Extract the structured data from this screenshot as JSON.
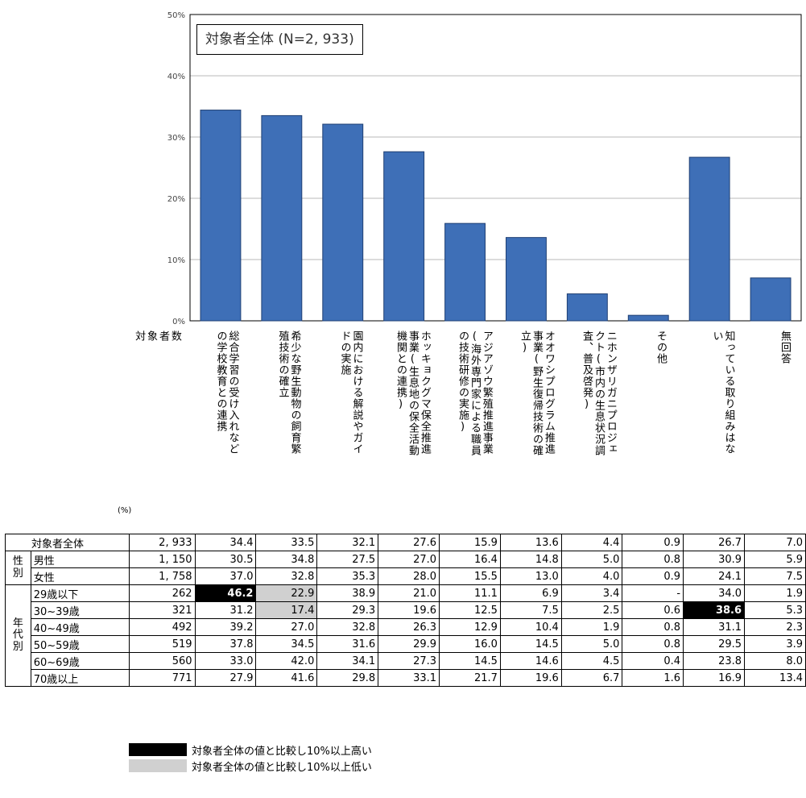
{
  "chart_data": {
    "type": "bar",
    "title": "対象者全体 (N=2, 933)",
    "ylim": [
      0,
      50
    ],
    "yticks": [
      "0%",
      "10%",
      "20%",
      "30%",
      "40%",
      "50%"
    ],
    "grid": true,
    "bar_color": "#3e6fb7",
    "categories": [
      "総合学習の学校教育との連携の受け入れなど",
      "希少な野生動物の飼育繁殖技術の確立",
      "園内における解説やガイドの実施",
      "ホッキョクグマ保全推進事業(生息地の保全活動機関との連携)",
      "アジアゾウ繁殖推進事業(海外専門家による職員の技術研修の実施)",
      "オオワシプログラム推進事業(野生復帰技術の確立)",
      "ニホンザリガニプロジェクト(市内の生息状況調査、普及啓発)",
      "その他",
      "知っている取り組みはない",
      "無回答"
    ],
    "values": [
      34.4,
      33.5,
      32.1,
      27.6,
      15.9,
      13.6,
      4.4,
      0.9,
      26.7,
      7.0
    ]
  },
  "table": {
    "pct_unit": "(%)",
    "headers": [
      "対象者数",
      "総合学習の学校教育との連携の受け入れなど",
      "希少な野生動物の飼育繁殖技術の確立",
      "園内における解説やガイドの実施",
      "ホッキョクグマ保全推進事業(生息地の保全活動機関との連携)",
      "アジアゾウ繁殖推進事業(海外専門家による職員の技術研修の実施)",
      "オオワシプログラム推進事業(野生復帰技術の確立)",
      "ニホンザリガニプロジェクト(市内の生息状況調査、普及啓発)",
      "その他",
      "知っている取り組みはない",
      "無回答"
    ],
    "header_columns": [
      [
        "対",
        "象",
        "者",
        "数"
      ],
      [
        "の学校教育との連携",
        "総合学習の受け入れなど"
      ],
      [
        "殖技術の確立",
        "希少な野生動物の飼育繁"
      ],
      [
        "ドの実施",
        "園内における解説やガイ"
      ],
      [
        "機関との連携)",
        "事業(生息地の保全活動",
        "ホッキョクグマ保全推進"
      ],
      [
        "の技術研修の実施)",
        "(海外専門家による職員",
        "アジアゾウ繁殖推進事業"
      ],
      [
        "立)",
        "事業(野生復帰技術の確",
        "オオワシプログラム推進"
      ],
      [
        "査、普及啓発)",
        "クト(市内の生息状況調",
        "ニホンザリガニプロジェ"
      ],
      [
        "その他"
      ],
      [
        "い",
        "知っている取り組みはな"
      ],
      [
        "無回答"
      ]
    ],
    "total": {
      "label": "対象者全体",
      "n": "2, 933",
      "values": [
        "34.4",
        "33.5",
        "32.1",
        "27.6",
        "15.9",
        "13.6",
        "4.4",
        "0.9",
        "26.7",
        "7.0"
      ],
      "marks": [
        "",
        "",
        "",
        "",
        "",
        "",
        "",
        "",
        "",
        ""
      ]
    },
    "groups": [
      {
        "label": "性別",
        "rows": [
          {
            "label": "男性",
            "n": "1, 150",
            "values": [
              "30.5",
              "34.8",
              "27.5",
              "27.0",
              "16.4",
              "14.8",
              "5.0",
              "0.8",
              "30.9",
              "5.9"
            ],
            "marks": [
              "",
              "",
              "",
              "",
              "",
              "",
              "",
              "",
              "",
              ""
            ]
          },
          {
            "label": "女性",
            "n": "1, 758",
            "values": [
              "37.0",
              "32.8",
              "35.3",
              "28.0",
              "15.5",
              "13.0",
              "4.0",
              "0.9",
              "24.1",
              "7.5"
            ],
            "marks": [
              "",
              "",
              "",
              "",
              "",
              "",
              "",
              "",
              "",
              ""
            ]
          }
        ]
      },
      {
        "label": "年代別",
        "rows": [
          {
            "label": "29歳以下",
            "n": "262",
            "values": [
              "46.2",
              "22.9",
              "38.9",
              "21.0",
              "11.1",
              "6.9",
              "3.4",
              "-",
              "34.0",
              "1.9"
            ],
            "marks": [
              "high",
              "low",
              "",
              "",
              "",
              "",
              "",
              "",
              "",
              ""
            ]
          },
          {
            "label": "30~39歳",
            "n": "321",
            "values": [
              "31.2",
              "17.4",
              "29.3",
              "19.6",
              "12.5",
              "7.5",
              "2.5",
              "0.6",
              "38.6",
              "5.3"
            ],
            "marks": [
              "",
              "low",
              "",
              "",
              "",
              "",
              "",
              "",
              "high",
              ""
            ]
          },
          {
            "label": "40~49歳",
            "n": "492",
            "values": [
              "39.2",
              "27.0",
              "32.8",
              "26.3",
              "12.9",
              "10.4",
              "1.9",
              "0.8",
              "31.1",
              "2.3"
            ],
            "marks": [
              "",
              "",
              "",
              "",
              "",
              "",
              "",
              "",
              "",
              ""
            ]
          },
          {
            "label": "50~59歳",
            "n": "519",
            "values": [
              "37.8",
              "34.5",
              "31.6",
              "29.9",
              "16.0",
              "14.5",
              "5.0",
              "0.8",
              "29.5",
              "3.9"
            ],
            "marks": [
              "",
              "",
              "",
              "",
              "",
              "",
              "",
              "",
              "",
              ""
            ]
          },
          {
            "label": "60~69歳",
            "n": "560",
            "values": [
              "33.0",
              "42.0",
              "34.1",
              "27.3",
              "14.5",
              "14.6",
              "4.5",
              "0.4",
              "23.8",
              "8.0"
            ],
            "marks": [
              "",
              "",
              "",
              "",
              "",
              "",
              "",
              "",
              "",
              ""
            ]
          },
          {
            "label": "70歳以上",
            "n": "771",
            "values": [
              "27.9",
              "41.6",
              "29.8",
              "33.1",
              "21.7",
              "19.6",
              "6.7",
              "1.6",
              "16.9",
              "13.4"
            ],
            "marks": [
              "",
              "",
              "",
              "",
              "",
              "",
              "",
              "",
              "",
              ""
            ]
          }
        ]
      }
    ]
  },
  "legend": {
    "high_label": "対象者全体の値と比較し10%以上高い",
    "low_label": "対象者全体の値と比較し10%以上低い",
    "high_color": "#000000",
    "low_color": "#d0d0d0"
  }
}
